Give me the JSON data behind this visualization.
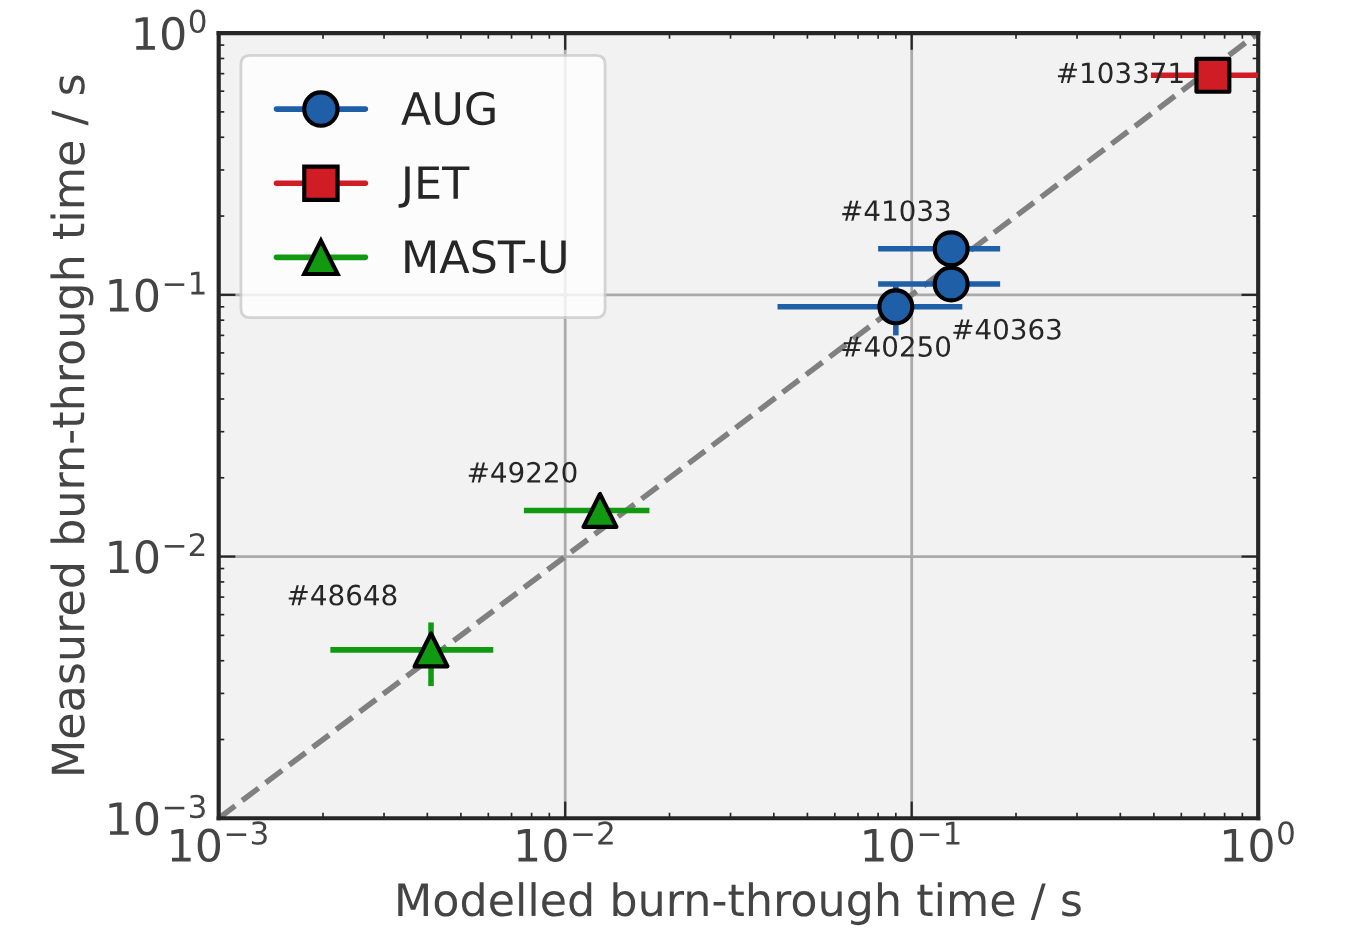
{
  "chart_data": {
    "type": "scatter",
    "xlabel": "Modelled burn-through time / s",
    "ylabel": "Measured burn-through time / s",
    "log": "xy",
    "xlim": [
      0.001,
      1
    ],
    "ylim": [
      0.001,
      1
    ],
    "xticks": [
      {
        "value": 0.001,
        "label": "10$^{−3}$"
      },
      {
        "value": 0.01,
        "label": "10$^{−2}$"
      },
      {
        "value": 0.1,
        "label": "10$^{−1}$"
      },
      {
        "value": 1,
        "label": "10$^{0}$"
      }
    ],
    "yticks": [
      {
        "value": 0.001,
        "label": "10$^{−3}$"
      },
      {
        "value": 0.01,
        "label": "10$^{−2}$"
      },
      {
        "value": 0.1,
        "label": "10$^{−1}$"
      },
      {
        "value": 1,
        "label": "10$^{0}$"
      }
    ],
    "grid": true,
    "legend": "top left",
    "series": [
      {
        "name": "AUG",
        "marker": "circle",
        "color": "#1f5fa8",
        "x": [
          0.13,
          0.13,
          0.09
        ],
        "values": [
          0.15,
          0.11,
          0.09
        ],
        "xerrors": [
          [
            0.08,
            0.18
          ],
          [
            0.08,
            0.18
          ],
          [
            0.041,
            0.14
          ]
        ],
        "errors": [
          null,
          null,
          [
            0.07,
            0.11
          ]
        ]
      },
      {
        "name": "JET",
        "marker": "square",
        "color": "#d01c24",
        "x": [
          0.74
        ],
        "values": [
          0.69
        ],
        "xerrors": [
          [
            0.49,
            1.0
          ]
        ],
        "errors": [
          null
        ]
      },
      {
        "name": "MAST-U",
        "marker": "triangle",
        "color": "#119911",
        "x": [
          0.0126,
          0.0041
        ],
        "values": [
          0.015,
          0.0044
        ],
        "xerrors": [
          [
            0.0076,
            0.0175
          ],
          [
            0.0021,
            0.0062
          ]
        ],
        "errors": [
          null,
          [
            0.0032,
            0.0056
          ]
        ]
      },
      {
        "type": "line",
        "color": "#808080",
        "line_style": "dashed",
        "x": [
          0.001,
          1
        ],
        "values": [
          0.001,
          1
        ]
      }
    ],
    "annotations": [
      {
        "text": "#41033",
        "x": 0.13,
        "y": 0.15
      },
      {
        "text": "#40363",
        "x": 0.13,
        "y": 0.11
      },
      {
        "text": "#40250",
        "x": 0.09,
        "y": 0.09
      },
      {
        "text": "#103371",
        "x": 0.74,
        "y": 0.69
      },
      {
        "text": "#49220",
        "x": 0.0126,
        "y": 0.015
      },
      {
        "text": "#48648",
        "x": 0.0041,
        "y": 0.0044
      }
    ]
  }
}
